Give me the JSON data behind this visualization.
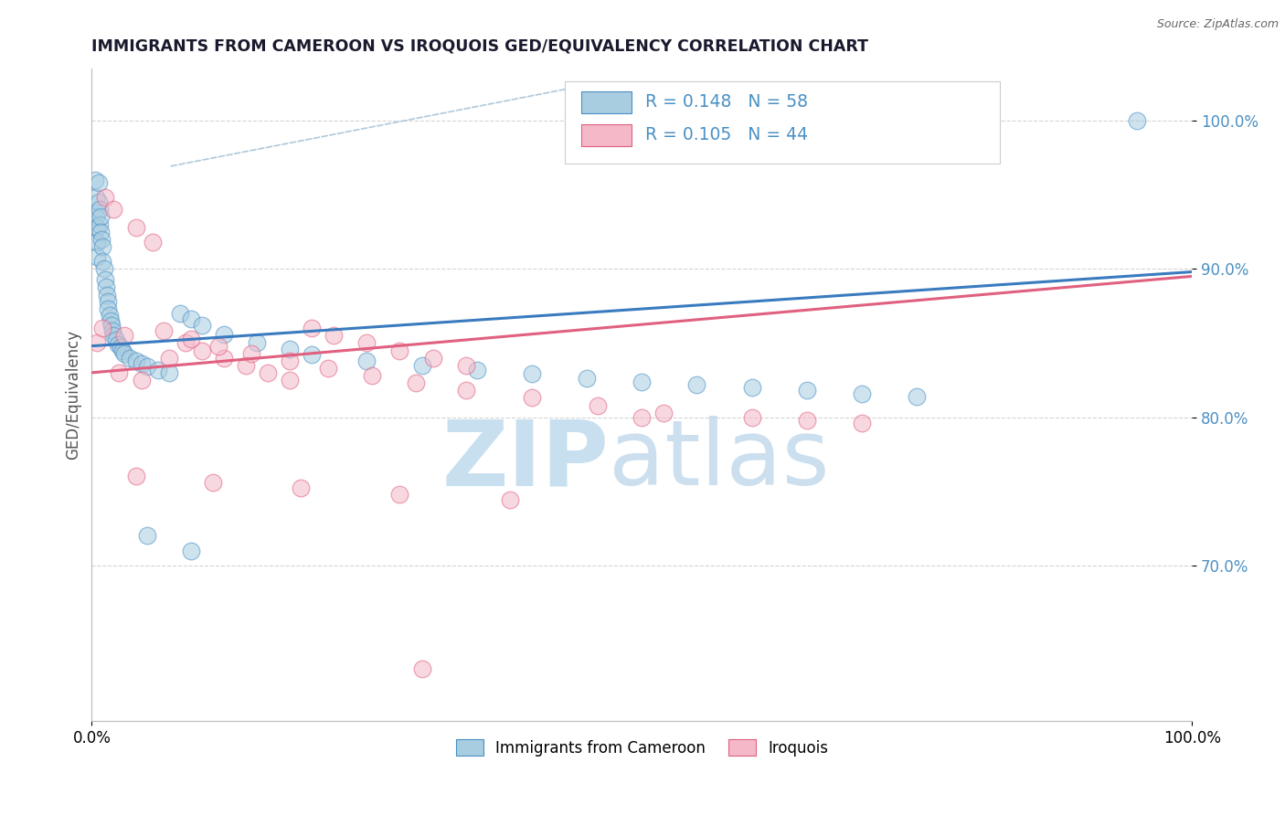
{
  "title": "IMMIGRANTS FROM CAMEROON VS IROQUOIS GED/EQUIVALENCY CORRELATION CHART",
  "source_text": "Source: ZipAtlas.com",
  "ylabel": "GED/Equivalency",
  "legend_label_1": "Immigrants from Cameroon",
  "legend_label_2": "Iroquois",
  "r1": 0.148,
  "n1": 58,
  "r2": 0.105,
  "n2": 44,
  "color_blue": "#a8cce0",
  "color_pink": "#f4b8c8",
  "color_blue_dark": "#4a90c4",
  "color_blue_line": "#3a7bbf",
  "color_pink_line": "#e06080",
  "color_tick": "#4a90c4",
  "xmin": 0.0,
  "xmax": 1.0,
  "ymin": 0.595,
  "ymax": 1.035,
  "yticks": [
    0.7,
    0.8,
    0.9,
    1.0
  ],
  "ytick_labels": [
    "70.0%",
    "80.0%",
    "90.0%",
    "100.0%"
  ],
  "xtick_labels": [
    "0.0%",
    "100.0%"
  ],
  "blue_scatter_x": [
    0.003,
    0.004,
    0.004,
    0.005,
    0.005,
    0.005,
    0.006,
    0.006,
    0.007,
    0.007,
    0.008,
    0.008,
    0.009,
    0.01,
    0.01,
    0.011,
    0.012,
    0.013,
    0.014,
    0.015,
    0.015,
    0.016,
    0.017,
    0.018,
    0.019,
    0.02,
    0.022,
    0.024,
    0.026,
    0.028,
    0.03,
    0.035,
    0.04,
    0.045,
    0.05,
    0.06,
    0.07,
    0.08,
    0.09,
    0.1,
    0.12,
    0.15,
    0.18,
    0.2,
    0.25,
    0.3,
    0.35,
    0.4,
    0.45,
    0.5,
    0.55,
    0.6,
    0.65,
    0.7,
    0.75,
    0.05,
    0.09,
    0.95
  ],
  "blue_scatter_y": [
    0.96,
    0.948,
    0.935,
    0.928,
    0.918,
    0.908,
    0.958,
    0.945,
    0.94,
    0.93,
    0.935,
    0.925,
    0.92,
    0.915,
    0.905,
    0.9,
    0.893,
    0.888,
    0.882,
    0.878,
    0.873,
    0.869,
    0.865,
    0.862,
    0.858,
    0.855,
    0.852,
    0.849,
    0.847,
    0.845,
    0.843,
    0.84,
    0.838,
    0.836,
    0.834,
    0.832,
    0.83,
    0.87,
    0.866,
    0.862,
    0.856,
    0.85,
    0.846,
    0.842,
    0.838,
    0.835,
    0.832,
    0.829,
    0.826,
    0.824,
    0.822,
    0.82,
    0.818,
    0.816,
    0.814,
    0.72,
    0.71,
    1.0
  ],
  "pink_scatter_x": [
    0.005,
    0.012,
    0.02,
    0.03,
    0.04,
    0.055,
    0.07,
    0.085,
    0.1,
    0.12,
    0.14,
    0.16,
    0.18,
    0.2,
    0.22,
    0.25,
    0.28,
    0.31,
    0.34,
    0.01,
    0.025,
    0.045,
    0.065,
    0.09,
    0.115,
    0.145,
    0.18,
    0.215,
    0.255,
    0.295,
    0.34,
    0.4,
    0.46,
    0.52,
    0.6,
    0.65,
    0.7,
    0.04,
    0.11,
    0.19,
    0.28,
    0.38,
    0.5,
    0.3
  ],
  "pink_scatter_y": [
    0.85,
    0.948,
    0.94,
    0.855,
    0.928,
    0.918,
    0.84,
    0.85,
    0.845,
    0.84,
    0.835,
    0.83,
    0.825,
    0.86,
    0.855,
    0.85,
    0.845,
    0.84,
    0.835,
    0.86,
    0.83,
    0.825,
    0.858,
    0.853,
    0.848,
    0.843,
    0.838,
    0.833,
    0.828,
    0.823,
    0.818,
    0.813,
    0.808,
    0.803,
    0.8,
    0.798,
    0.796,
    0.76,
    0.756,
    0.752,
    0.748,
    0.744,
    0.8,
    0.63
  ],
  "blue_line_x0": 0.0,
  "blue_line_x1": 1.0,
  "blue_line_y0": 0.848,
  "blue_line_y1": 0.898,
  "pink_line_x0": 0.0,
  "pink_line_x1": 1.0,
  "pink_line_y0": 0.83,
  "pink_line_y1": 0.895,
  "background_color": "#ffffff",
  "grid_color": "#d0d0d0",
  "title_color": "#1a1a2e",
  "watermark_zip_color": "#c8dff0",
  "watermark_atlas_color": "#c0d8ec"
}
